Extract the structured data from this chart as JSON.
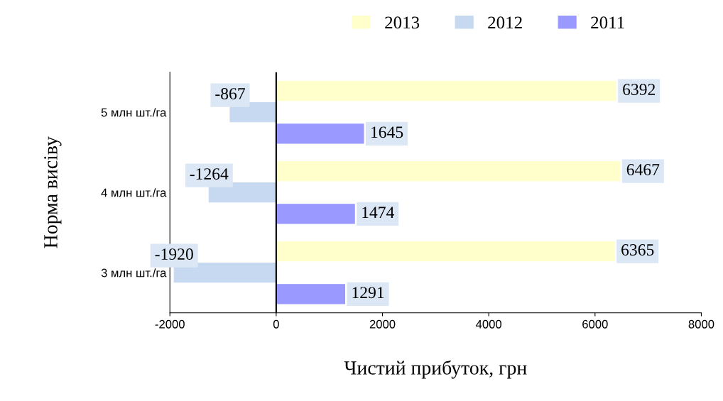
{
  "chart_data": {
    "type": "bar",
    "orientation": "horizontal",
    "xlabel": "Чистий прибуток, грн",
    "ylabel": "Норма висіву",
    "categories": [
      "5 млн шт./га",
      "4 млн шт./га",
      "3 млн шт./га"
    ],
    "series": [
      {
        "name": "2013",
        "color": "#ffffcc",
        "values": [
          6392,
          6467,
          6365
        ]
      },
      {
        "name": "2012",
        "color": "#c6d9f1",
        "values": [
          -867,
          -1264,
          -1920
        ]
      },
      {
        "name": "2011",
        "color": "#9999ff",
        "values": [
          1645,
          1474,
          1291
        ]
      }
    ],
    "xlim": [
      -2000,
      8000
    ],
    "xticks": [
      -2000,
      0,
      2000,
      4000,
      6000,
      8000
    ],
    "ref_lines": [
      {
        "axis": "x",
        "value": 0,
        "color": "#000000"
      }
    ],
    "data_labels": true,
    "legend": "top",
    "grid": false
  }
}
